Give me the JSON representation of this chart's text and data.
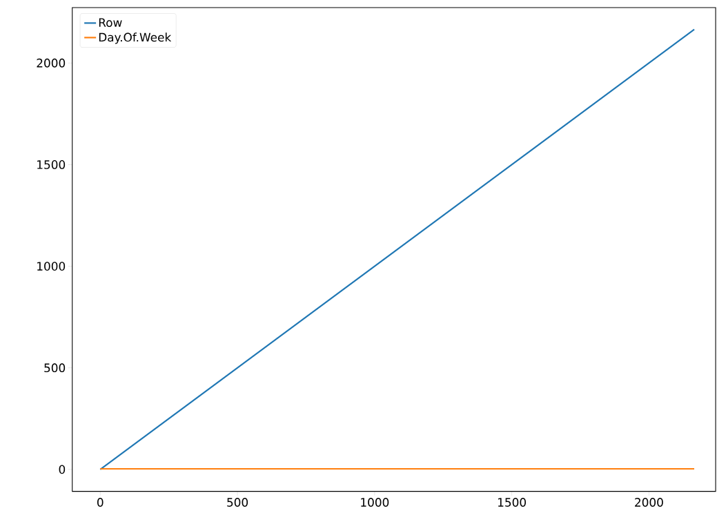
{
  "chart_data": {
    "type": "line",
    "x": [
      0,
      2165
    ],
    "series": [
      {
        "name": "Row",
        "color": "#1f77b4",
        "values": [
          0,
          2165
        ]
      },
      {
        "name": "Day.Of.Week",
        "color": "#ff7f0e",
        "values": [
          3,
          3
        ]
      }
    ],
    "xlim": [
      -102,
      2243
    ],
    "ylim": [
      -108,
      2273
    ],
    "xticks": [
      0,
      500,
      1000,
      1500,
      2000
    ],
    "yticks": [
      0,
      500,
      1000,
      1500,
      2000
    ],
    "legend": "top left",
    "grid": false
  }
}
